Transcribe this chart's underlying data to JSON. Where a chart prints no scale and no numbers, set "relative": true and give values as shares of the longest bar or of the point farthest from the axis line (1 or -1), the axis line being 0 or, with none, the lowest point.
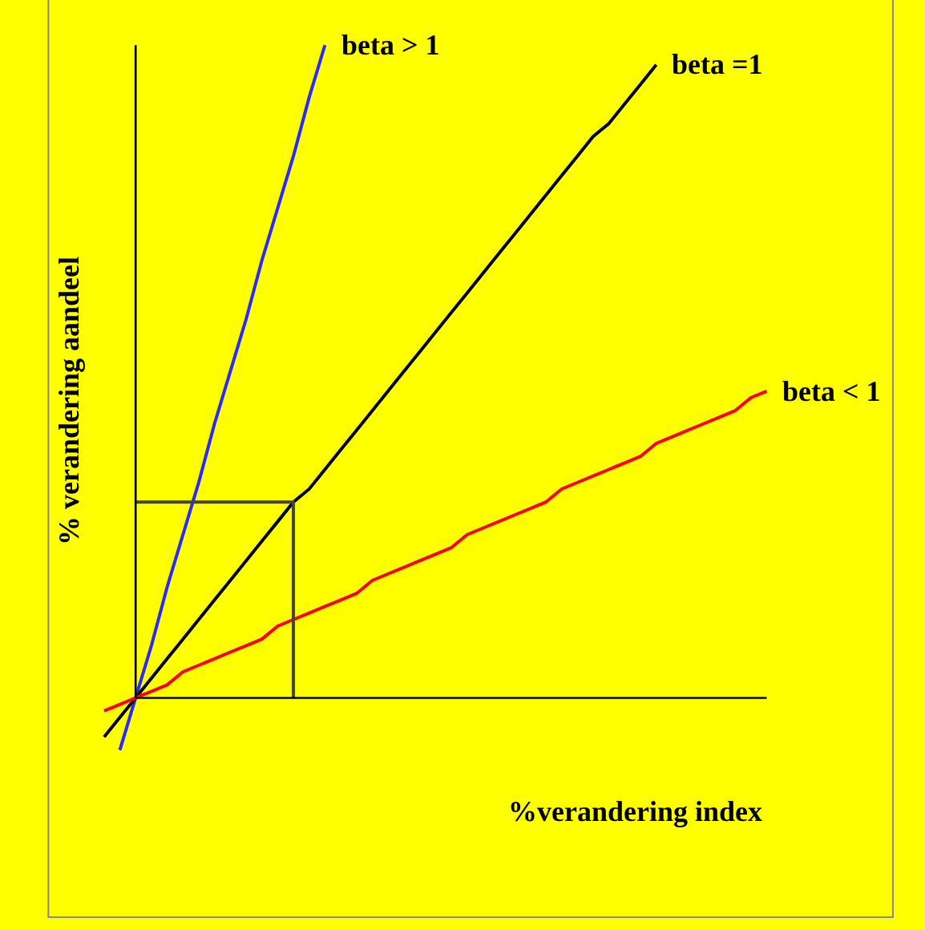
{
  "chart_data": {
    "type": "line",
    "relative": true,
    "xlabel": "%verandering index",
    "ylabel": "% verandering aandeel",
    "legend": false,
    "grid": false,
    "marker": "none",
    "line_style": "solid",
    "categories": [
      null,
      null,
      null,
      null,
      null,
      null,
      null,
      null,
      null,
      null,
      null,
      null,
      null,
      null,
      null,
      null,
      null,
      null,
      null,
      null,
      null,
      null,
      null,
      null,
      null,
      null,
      null,
      null,
      null,
      null,
      null,
      null,
      null,
      null,
      null,
      null,
      null,
      null,
      null,
      null,
      null,
      null,
      null
    ],
    "series": [
      {
        "name": "beta > 1",
        "color": "#2a2aff",
        "values": [
          null,
          -0.08,
          0,
          0.08,
          0.17,
          0.25,
          0.33,
          0.42,
          0.5,
          0.58,
          0.67,
          0.75,
          0.83,
          0.92,
          1.0,
          null,
          null,
          null,
          null,
          null,
          null,
          null,
          null,
          null,
          null,
          null,
          null,
          null,
          null,
          null,
          null,
          null,
          null,
          null,
          null,
          null,
          null,
          null,
          null,
          null,
          null,
          null,
          null
        ]
      },
      {
        "name": "beta =1",
        "color": "#000000",
        "values": [
          -0.06,
          -0.03,
          0,
          0.03,
          0.06,
          0.09,
          0.12,
          0.15,
          0.18,
          0.21,
          0.24,
          0.27,
          0.3,
          0.32,
          0.35,
          0.38,
          0.41,
          0.44,
          0.47,
          0.5,
          0.53,
          0.56,
          0.59,
          0.62,
          0.65,
          0.68,
          0.71,
          0.74,
          0.77,
          0.8,
          0.83,
          0.86,
          0.88,
          0.91,
          0.94,
          0.97,
          null,
          null,
          null,
          null,
          null,
          null,
          null
        ]
      },
      {
        "name": "beta < 1",
        "color": "#ff0000",
        "values": [
          -0.02,
          -0.01,
          0,
          0.01,
          0.02,
          0.04,
          0.05,
          0.06,
          0.07,
          0.08,
          0.09,
          0.11,
          0.12,
          0.13,
          0.14,
          0.15,
          0.16,
          0.18,
          0.19,
          0.2,
          0.21,
          0.22,
          0.23,
          0.25,
          0.26,
          0.27,
          0.28,
          0.29,
          0.3,
          0.32,
          0.33,
          0.34,
          0.35,
          0.36,
          0.37,
          0.39,
          0.4,
          0.41,
          0.42,
          0.43,
          0.44,
          0.46,
          0.47
        ]
      },
      {
        "type": "step",
        "color": "#444444",
        "values": [
          null,
          null,
          0.3,
          0.3,
          0.3,
          0.3,
          0.3,
          0.3,
          0.3,
          0.3,
          0.3,
          0.3,
          0,
          null,
          null,
          null,
          null,
          null,
          null,
          null,
          null,
          null,
          null,
          null,
          null,
          null,
          null,
          null,
          null,
          null,
          null,
          null,
          null,
          null,
          null,
          null,
          null,
          null,
          null,
          null,
          null,
          null,
          null
        ]
      }
    ]
  }
}
